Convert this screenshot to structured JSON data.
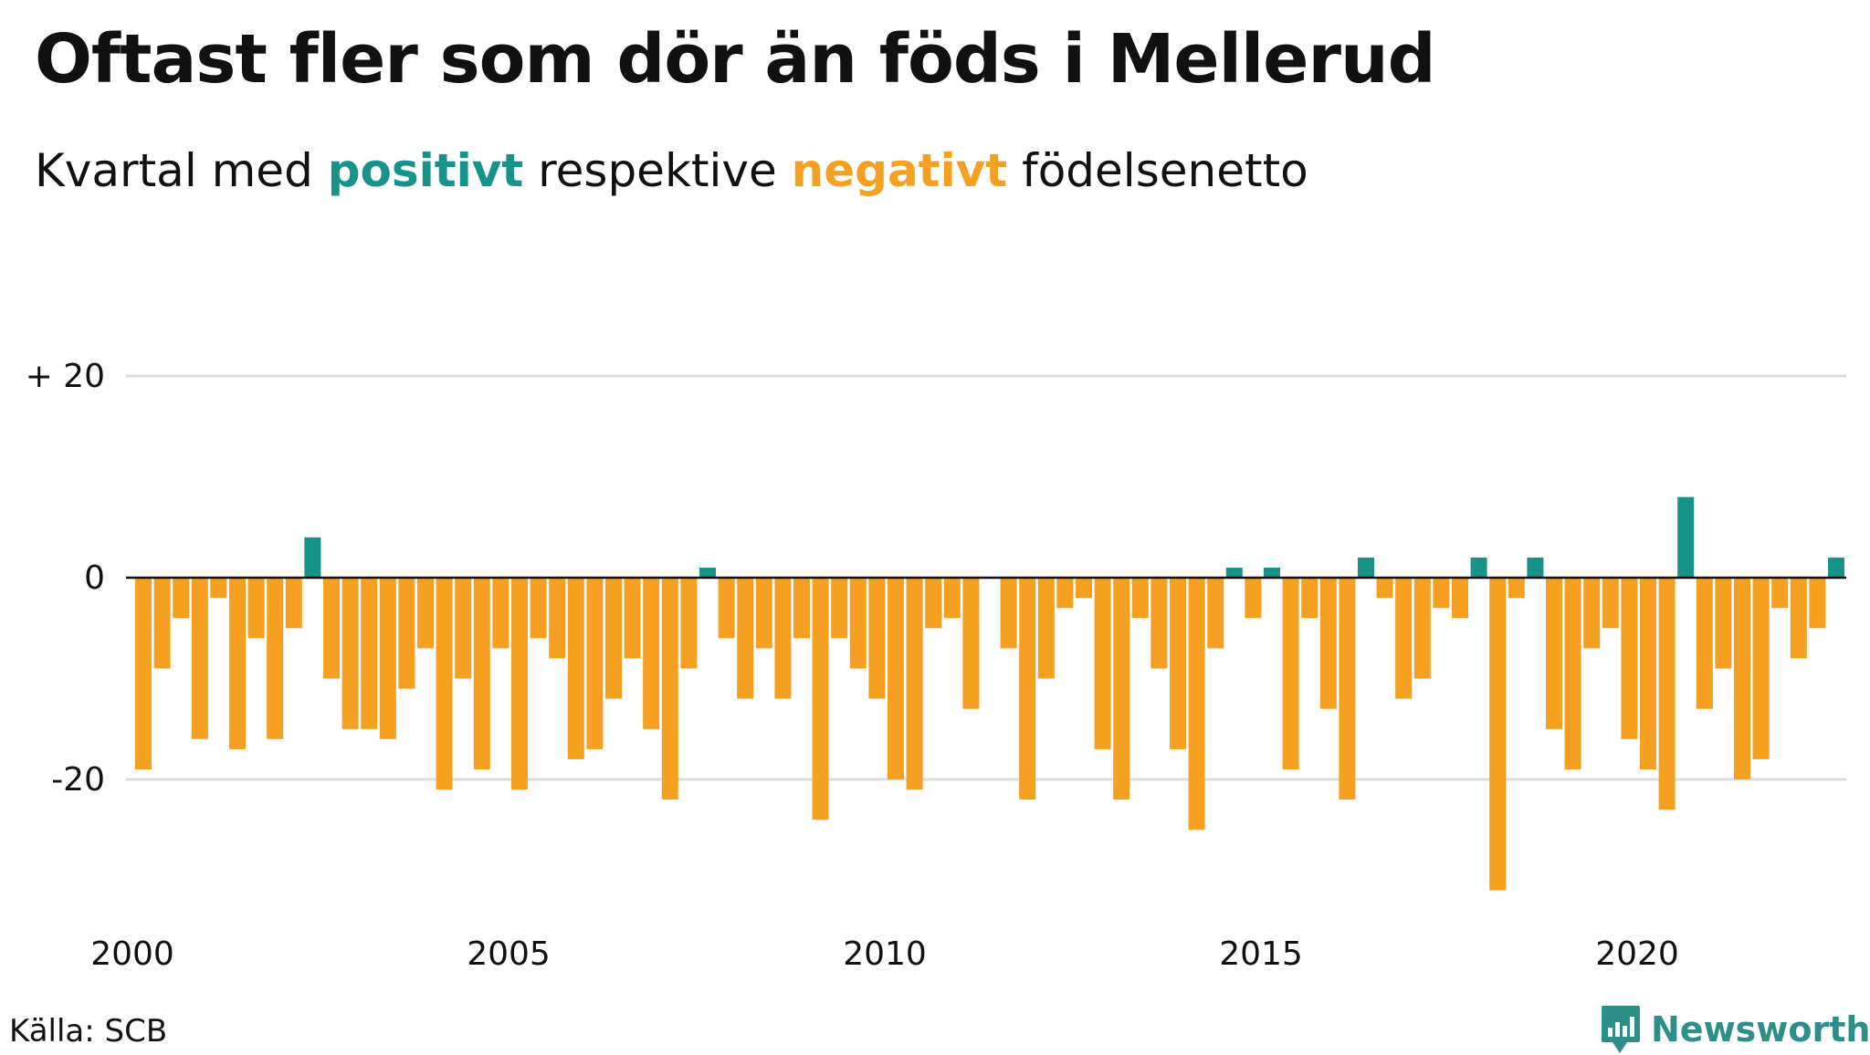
{
  "header": {
    "title": "Oftast fler som dör än föds i Mellerud",
    "subtitle_parts": [
      "Kvartal med ",
      "positivt",
      " respektive ",
      "negativt",
      " födelsenetto"
    ]
  },
  "footer": {
    "source": "Källa: SCB",
    "brand": "Newsworthy"
  },
  "colors": {
    "positive": "#17938a",
    "negative": "#f5a020",
    "grid": "#dddddd",
    "zero_line": "#111111"
  },
  "chart_data": {
    "type": "bar",
    "start_year": 2000,
    "x_ticks": [
      "2000",
      "2005",
      "2010",
      "2015",
      "2020"
    ],
    "y_ticks": [
      {
        "value": 20,
        "label": "+ 20"
      },
      {
        "value": 0,
        "label": "0"
      },
      {
        "value": -20,
        "label": "-20"
      }
    ],
    "ylim": [
      -33,
      20
    ],
    "values": [
      -19,
      -9,
      -4,
      -16,
      -2,
      -17,
      -6,
      -16,
      -5,
      4,
      -10,
      -15,
      -15,
      -16,
      -11,
      -7,
      -21,
      -10,
      -19,
      -7,
      -21,
      -6,
      -8,
      -18,
      -17,
      -12,
      -8,
      -15,
      -22,
      -9,
      1,
      -6,
      -12,
      -7,
      -12,
      -6,
      -24,
      -6,
      -9,
      -12,
      -20,
      -21,
      -5,
      -4,
      -13,
      0,
      -7,
      -22,
      -10,
      -3,
      -2,
      -17,
      -22,
      -4,
      -9,
      -17,
      -25,
      -7,
      1,
      -4,
      1,
      -19,
      -4,
      -13,
      -22,
      2,
      -2,
      -12,
      -10,
      -3,
      -4,
      2,
      -31,
      -2,
      2,
      -15,
      -19,
      -7,
      -5,
      -16,
      -19,
      -23,
      8,
      -13,
      -9,
      -20,
      -18,
      -3,
      -8,
      -5,
      2
    ]
  }
}
